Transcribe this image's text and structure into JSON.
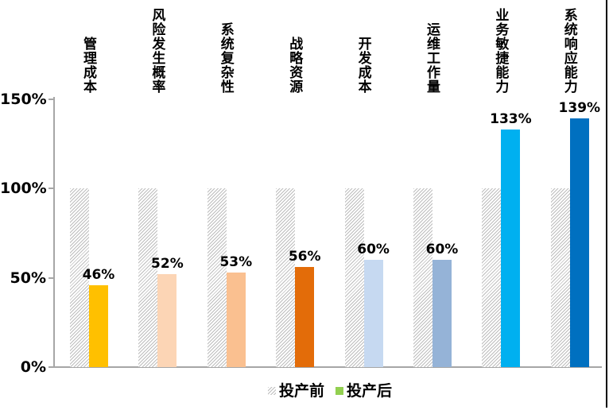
{
  "chart_data": {
    "type": "bar",
    "title": "",
    "xlabel": "",
    "ylabel": "",
    "categories": [
      "管理成本",
      "风险发生概率",
      "系统复杂性",
      "战略资源",
      "开发成本",
      "运维工作量",
      "业务敏捷能力",
      "系统响应能力"
    ],
    "series": [
      {
        "name": "投产前",
        "values": [
          100,
          100,
          100,
          100,
          100,
          100,
          100,
          100
        ],
        "style": "hatched-gray",
        "hatch_color": "#bdbdbd"
      },
      {
        "name": "投产后",
        "values": [
          46,
          52,
          53,
          56,
          60,
          60,
          133,
          139
        ],
        "labels": [
          "46%",
          "52%",
          "53%",
          "56%",
          "60%",
          "60%",
          "133%",
          "139%"
        ],
        "colors": [
          "#FFC000",
          "#FCD5B5",
          "#FAC090",
          "#E36C09",
          "#C6D9F1",
          "#95B3D7",
          "#00B0F0",
          "#0070C0"
        ],
        "legend_color": "#92D050"
      }
    ],
    "y_ticks": [
      "0%",
      "50%",
      "100%",
      "150%"
    ],
    "y_tick_values": [
      0,
      50,
      100,
      150
    ],
    "ylim": [
      0,
      150
    ],
    "grid": false,
    "legend_position": "bottom",
    "axis_color": "#a6a6a6"
  }
}
